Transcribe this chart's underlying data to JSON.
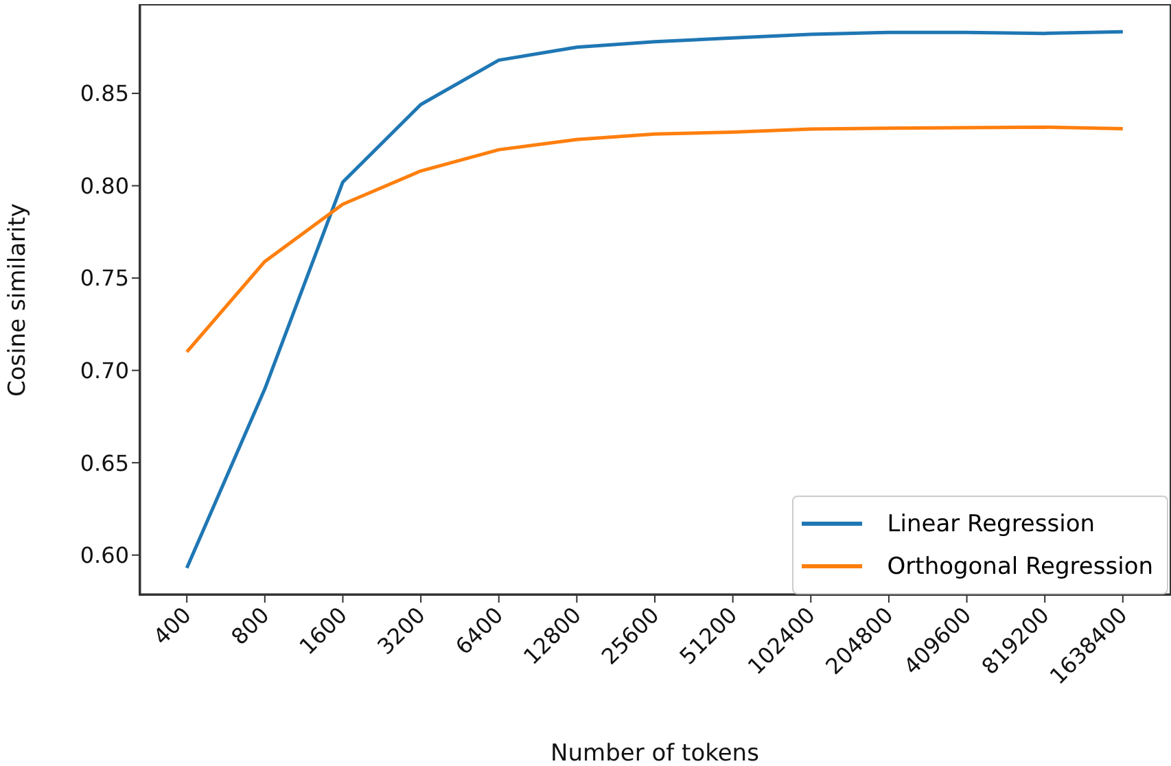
{
  "chart_data": {
    "type": "line",
    "xlabel": "Number of tokens",
    "ylabel": "Cosine similarity",
    "categories": [
      "400",
      "800",
      "1600",
      "3200",
      "6400",
      "12800",
      "25600",
      "51200",
      "102400",
      "204800",
      "409600",
      "819200",
      "1638400"
    ],
    "ylim": [
      0.5787,
      0.8976
    ],
    "yticks": [
      {
        "value": 0.6,
        "label": "0.60"
      },
      {
        "value": 0.65,
        "label": "0.65"
      },
      {
        "value": 0.7,
        "label": "0.70"
      },
      {
        "value": 0.75,
        "label": "0.75"
      },
      {
        "value": 0.8,
        "label": "0.80"
      },
      {
        "value": 0.85,
        "label": "0.85"
      }
    ],
    "series": [
      {
        "name": "Linear Regression",
        "color": "#1f77b4",
        "values": [
          0.593,
          0.69,
          0.802,
          0.844,
          0.868,
          0.875,
          0.878,
          0.88,
          0.882,
          0.883,
          0.883,
          0.8825,
          0.8834
        ]
      },
      {
        "name": "Orthogonal Regression",
        "color": "#ff7f0e",
        "values": [
          0.71,
          0.759,
          0.79,
          0.808,
          0.8195,
          0.825,
          0.828,
          0.829,
          0.8307,
          0.8312,
          0.8314,
          0.8317,
          0.8309
        ]
      }
    ],
    "grid": false,
    "legend": "bottom right",
    "marker": "none",
    "line_style": "solid"
  }
}
